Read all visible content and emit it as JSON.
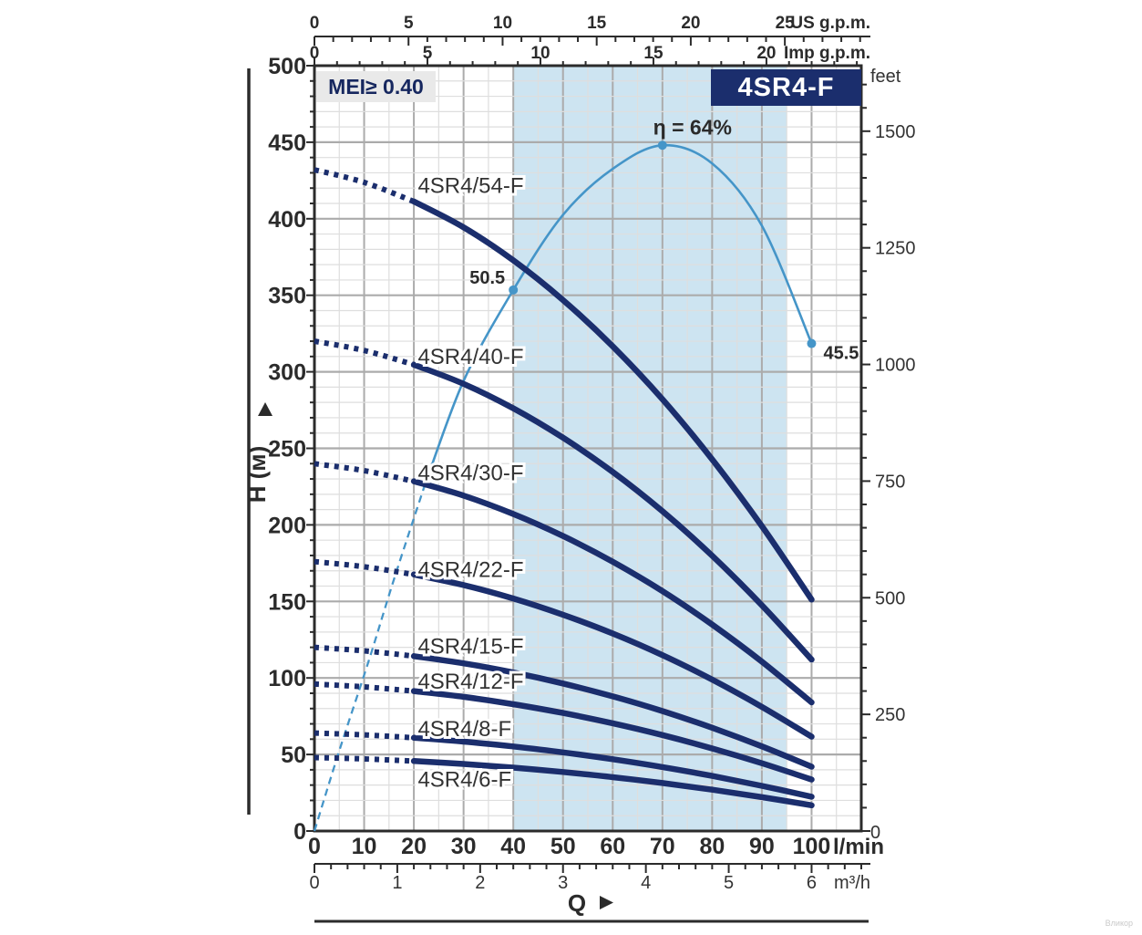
{
  "badges": {
    "mei": "MEI≥ 0.40",
    "title": "4SR4-F"
  },
  "labels": {
    "eta_peak": "η = 64%",
    "eff_start": "50.5",
    "eff_end": "45.5",
    "y_left": "H (м)",
    "y_right": "feet",
    "flow": "Q",
    "unit_lmin": "l/min",
    "unit_m3h": "m³/h",
    "unit_usgpm": "US g.p.m.",
    "unit_impgpm": "Imp g.p.m.",
    "feet_zero": "0"
  },
  "watermark": "Вликор",
  "colors": {
    "curve": "#1b2e6d",
    "efficiency": "#4595c8",
    "band": "#cde4f1",
    "grid_minor": "#dedede",
    "grid_major": "#ababab",
    "axis": "#2b2b2b",
    "text": "#2b2b2b",
    "curve_label": "#333333",
    "badge_bg": "#1b2e6d",
    "badge_fg": "#ffffff",
    "mei_bg": "#e9e9e9",
    "mei_fg": "#16275f"
  },
  "chart_data": {
    "type": "line",
    "title": "4SR4-F",
    "xlabel": "Q (l/min)",
    "ylabel": "H (м)",
    "x_range_lmin": [
      0,
      110
    ],
    "y_range_m": [
      0,
      500
    ],
    "duty_band_lmin": [
      40,
      95
    ],
    "grid": "on",
    "axes": {
      "lmin_ticks": [
        0,
        10,
        20,
        30,
        40,
        50,
        60,
        70,
        80,
        90,
        100
      ],
      "m3h_ticks": [
        0,
        1,
        2,
        3,
        4,
        5,
        6
      ],
      "usgpm_ticks": [
        0,
        5,
        10,
        15,
        20,
        25
      ],
      "impgpm_ticks": [
        0,
        5,
        10,
        15,
        20
      ],
      "h_m_ticks": [
        0,
        50,
        100,
        150,
        200,
        250,
        300,
        350,
        400,
        450,
        500
      ],
      "feet_ticks": [
        0,
        250,
        500,
        750,
        1000,
        1250,
        1500
      ],
      "lmin_per_usgpm": 3.785,
      "lmin_per_impgpm": 4.546,
      "lmin_per_m3h": 16.667,
      "m_per_foot": 0.3048
    },
    "q_samples": [
      0,
      10,
      20,
      30,
      40,
      50,
      60,
      70,
      80,
      90,
      100
    ],
    "head_factor": [
      1,
      0.981,
      0.952,
      0.913,
      0.863,
      0.803,
      0.733,
      0.653,
      0.562,
      0.461,
      0.35
    ],
    "dotted_until_lmin": 20,
    "series": [
      {
        "name": "4SR4/54-F",
        "h0_m": 432,
        "label_h_m": 417
      },
      {
        "name": "4SR4/40-F",
        "h0_m": 320,
        "label_h_m": 305
      },
      {
        "name": "4SR4/30-F",
        "h0_m": 240,
        "label_h_m": 229
      },
      {
        "name": "4SR4/22-F",
        "h0_m": 176,
        "label_h_m": 166
      },
      {
        "name": "4SR4/15-F",
        "h0_m": 120,
        "label_h_m": 116
      },
      {
        "name": "4SR4/12-F",
        "h0_m": 96,
        "label_h_m": 93
      },
      {
        "name": "4SR4/8-F",
        "h0_m": 64,
        "label_h_m": 62
      },
      {
        "name": "4SR4/6-F",
        "h0_m": 48,
        "label_h_m": 29
      }
    ],
    "efficiency": {
      "q": [
        0,
        5,
        11,
        16,
        22,
        30,
        40,
        50,
        60,
        70,
        80,
        90,
        100
      ],
      "eta_pct": [
        0,
        7.5,
        16,
        23.5,
        32,
        42,
        50.5,
        57.5,
        61.8,
        64,
        62.3,
        56.5,
        45.5
      ],
      "dashed_until_q": 22,
      "m_per_pct": 7,
      "marked_points": [
        {
          "q": 40,
          "eta_pct": 50.5,
          "label": "50.5"
        },
        {
          "q": 70,
          "eta_pct": 64,
          "label": "η = 64%"
        },
        {
          "q": 100,
          "eta_pct": 45.5,
          "label": "45.5"
        }
      ]
    }
  }
}
